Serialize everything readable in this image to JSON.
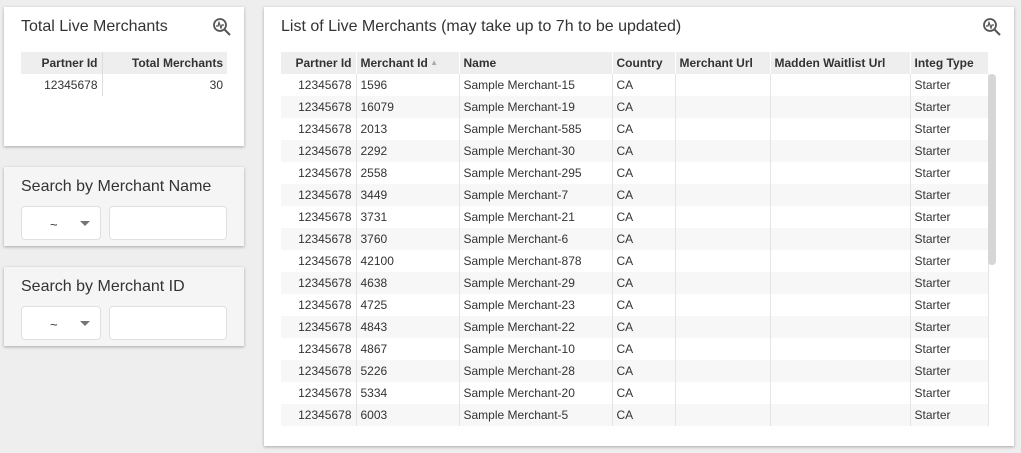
{
  "total_card": {
    "title": "Total Live Merchants",
    "icon": "search-insights-icon",
    "headers": [
      "Partner Id",
      "Total Merchants"
    ],
    "row": [
      "12345678",
      "30"
    ]
  },
  "search_name": {
    "title": "Search by Merchant Name",
    "operator": "~",
    "value": ""
  },
  "search_id": {
    "title": "Search by Merchant ID",
    "operator": "~",
    "value": ""
  },
  "list": {
    "title": "List of Live Merchants (may take up to 7h to be updated)",
    "icon": "search-insights-icon",
    "headers": [
      "Partner Id",
      "Merchant Id",
      "Name",
      "Country",
      "Merchant Url",
      "Madden Waitlist Url",
      "Integ Type"
    ],
    "sort": {
      "column": "Merchant Id",
      "direction": "ascending"
    },
    "rows": [
      [
        "12345678",
        "1596",
        "Sample Merchant-15",
        "CA",
        "",
        "",
        "Starter"
      ],
      [
        "12345678",
        "16079",
        "Sample Merchant-19",
        "CA",
        "",
        "",
        "Starter"
      ],
      [
        "12345678",
        "2013",
        "Sample Merchant-585",
        "CA",
        "",
        "",
        "Starter"
      ],
      [
        "12345678",
        "2292",
        "Sample Merchant-30",
        "CA",
        "",
        "",
        "Starter"
      ],
      [
        "12345678",
        "2558",
        "Sample Merchant-295",
        "CA",
        "",
        "",
        "Starter"
      ],
      [
        "12345678",
        "3449",
        "Sample Merchant-7",
        "CA",
        "",
        "",
        "Starter"
      ],
      [
        "12345678",
        "3731",
        "Sample Merchant-21",
        "CA",
        "",
        "",
        "Starter"
      ],
      [
        "12345678",
        "3760",
        "Sample Merchant-6",
        "CA",
        "",
        "",
        "Starter"
      ],
      [
        "12345678",
        "42100",
        "Sample Merchant-878",
        "CA",
        "",
        "",
        "Starter"
      ],
      [
        "12345678",
        "4638",
        "Sample Merchant-29",
        "CA",
        "",
        "",
        "Starter"
      ],
      [
        "12345678",
        "4725",
        "Sample Merchant-23",
        "CA",
        "",
        "",
        "Starter"
      ],
      [
        "12345678",
        "4843",
        "Sample Merchant-22",
        "CA",
        "",
        "",
        "Starter"
      ],
      [
        "12345678",
        "4867",
        "Sample Merchant-10",
        "CA",
        "",
        "",
        "Starter"
      ],
      [
        "12345678",
        "5226",
        "Sample Merchant-28",
        "CA",
        "",
        "",
        "Starter"
      ],
      [
        "12345678",
        "5334",
        "Sample Merchant-20",
        "CA",
        "",
        "",
        "Starter"
      ],
      [
        "12345678",
        "6003",
        "Sample Merchant-5",
        "CA",
        "",
        "",
        "Starter"
      ]
    ]
  }
}
